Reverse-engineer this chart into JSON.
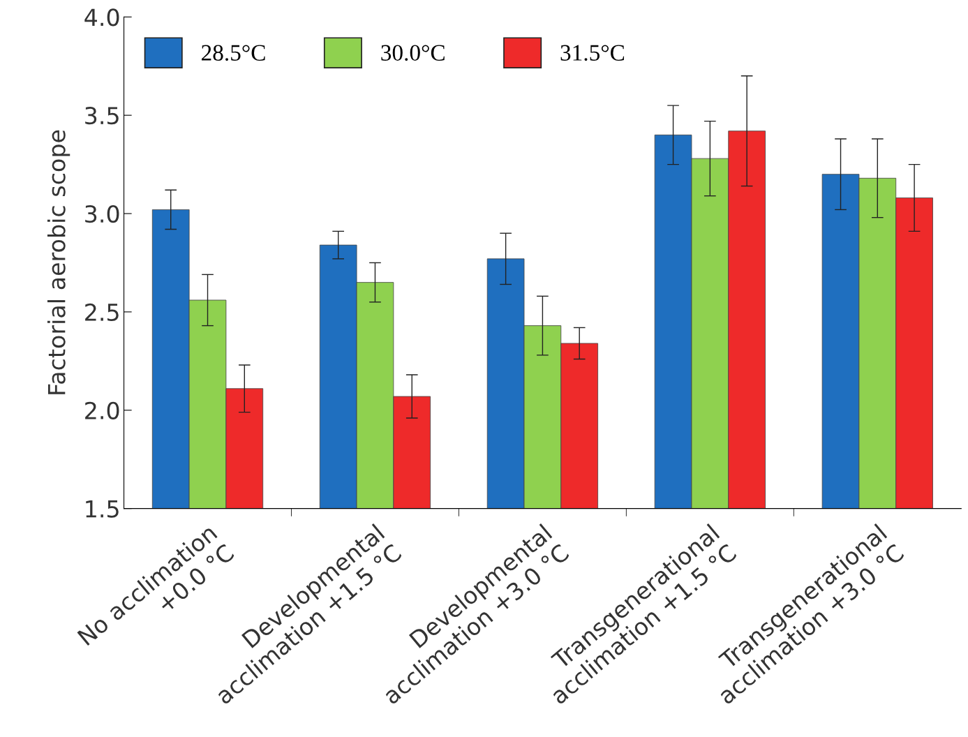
{
  "chart_data": {
    "type": "bar",
    "ylabel": "Factorial aerobic scope",
    "categories": [
      "No acclimation\n+0.0 °C",
      "Developmental\nacclimation +1.5 °C",
      "Developmental\nacclimation +3.0 °C",
      "Transgenerational\nacclimation +1.5 °C",
      "Transgenerational\nacclimation +3.0 °C"
    ],
    "series": [
      {
        "name": "28.5°C",
        "color": "#1f6fbf",
        "values": [
          3.02,
          2.84,
          2.77,
          3.4,
          3.2
        ],
        "errors": [
          0.1,
          0.07,
          0.13,
          0.15,
          0.18
        ]
      },
      {
        "name": "30.0°C",
        "color": "#8fd14f",
        "values": [
          2.56,
          2.65,
          2.43,
          3.28,
          3.18
        ],
        "errors": [
          0.13,
          0.1,
          0.15,
          0.19,
          0.2
        ]
      },
      {
        "name": "31.5°C",
        "color": "#ee2a2a",
        "values": [
          2.11,
          2.07,
          2.34,
          3.42,
          3.08
        ],
        "errors": [
          0.12,
          0.11,
          0.08,
          0.28,
          0.17
        ]
      }
    ],
    "ylim": [
      1.5,
      4.0
    ],
    "yticks": [
      {
        "value": 1.5,
        "label": "1.5"
      },
      {
        "value": 2.0,
        "label": "2.0"
      },
      {
        "value": 2.5,
        "label": "2.5"
      },
      {
        "value": 3.0,
        "label": "3.0"
      },
      {
        "value": 3.5,
        "label": "3.5"
      },
      {
        "value": 4.0,
        "label": "4.0"
      }
    ],
    "grid": false,
    "legend": "top left"
  }
}
